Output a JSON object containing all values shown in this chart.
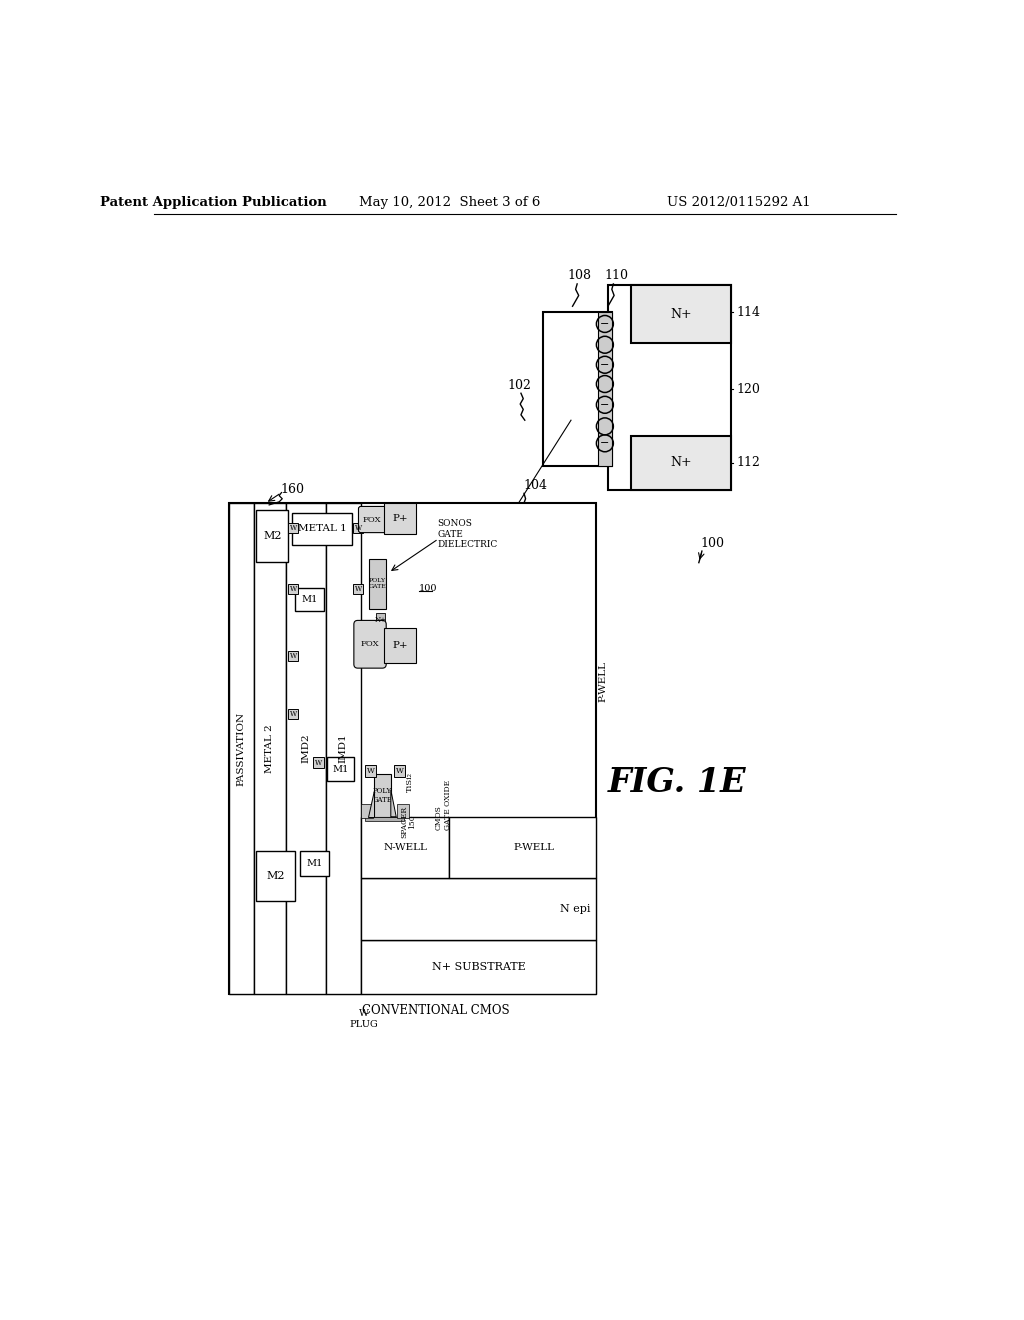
{
  "header_left": "Patent Application Publication",
  "header_mid": "May 10, 2012  Sheet 3 of 6",
  "header_right": "US 2012/0115292 A1",
  "figure_label": "FIG. 1E",
  "bg_color": "#ffffff",
  "text_color": "#000000"
}
